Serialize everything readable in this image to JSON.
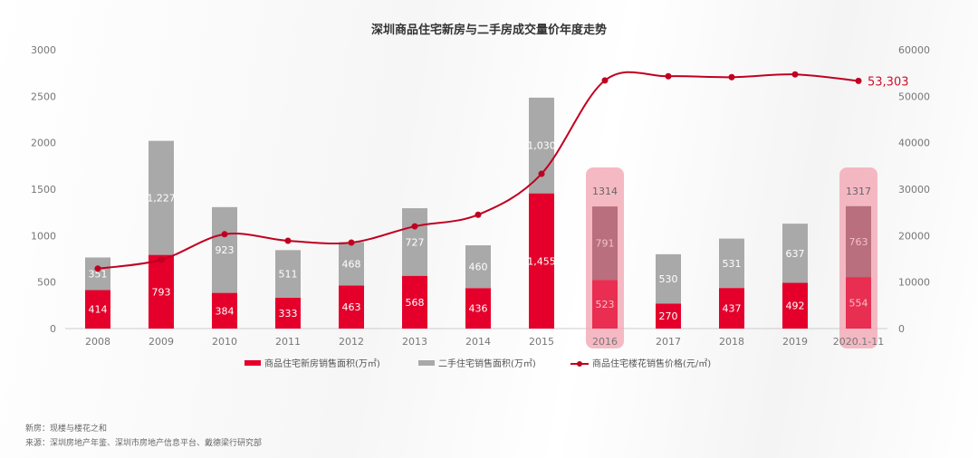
{
  "chart_data": {
    "type": "bar",
    "title": "深圳商品住宅新房与二手房成交量价年度走势",
    "categories": [
      "2008",
      "2009",
      "2010",
      "2011",
      "2012",
      "2013",
      "2014",
      "2015",
      "2016",
      "2017",
      "2018",
      "2019",
      "2020.1-11"
    ],
    "series": [
      {
        "name": "商品住宅新房销售面积(万㎡)",
        "type": "bar",
        "axis": "left",
        "color": "#e4002b",
        "values": [
          414,
          793,
          384,
          333,
          463,
          568,
          436,
          1455,
          523,
          270,
          437,
          492,
          554
        ],
        "labels": [
          "414",
          "793",
          "384",
          "333",
          "463",
          "568",
          "436",
          "1,455",
          "523",
          "270",
          "437",
          "492",
          "554"
        ]
      },
      {
        "name": "二手住宅销售面积(万㎡)",
        "type": "bar",
        "axis": "left",
        "color": "#a9a9a9",
        "values": [
          351,
          1227,
          923,
          511,
          468,
          727,
          460,
          1030,
          791,
          530,
          531,
          637,
          763
        ],
        "labels": [
          "351",
          "1,227",
          "923",
          "511",
          "468",
          "727",
          "460",
          "1,030",
          "791",
          "530",
          "531",
          "637",
          "763"
        ]
      },
      {
        "name": "商品住宅楼花销售价格(元/㎡)",
        "type": "line",
        "axis": "right",
        "color": "#c00020",
        "values": [
          12900,
          14800,
          20300,
          18900,
          18500,
          22000,
          24500,
          33300,
          53400,
          54300,
          54100,
          54700,
          53303
        ]
      }
    ],
    "highlights": [
      {
        "category": "2016",
        "total_label": "1314"
      },
      {
        "category": "2020.1-11",
        "total_label": "1317"
      }
    ],
    "end_label": "53,303",
    "left_axis": {
      "ylim": [
        0,
        3000
      ],
      "ticks": [
        "0",
        "500",
        "1000",
        "1500",
        "2000",
        "2500",
        "3000"
      ]
    },
    "right_axis": {
      "ylim": [
        0,
        60000
      ],
      "ticks": [
        "0",
        "10000",
        "20000",
        "30000",
        "40000",
        "50000",
        "60000"
      ]
    },
    "legend_position": "bottom",
    "grid": false,
    "highlight_color": "#f2a7b5"
  },
  "notes": [
    "新房：现楼与楼花之和",
    "来源：深圳房地产年鉴、深圳市房地产信息平台、戴德梁行研究部"
  ]
}
